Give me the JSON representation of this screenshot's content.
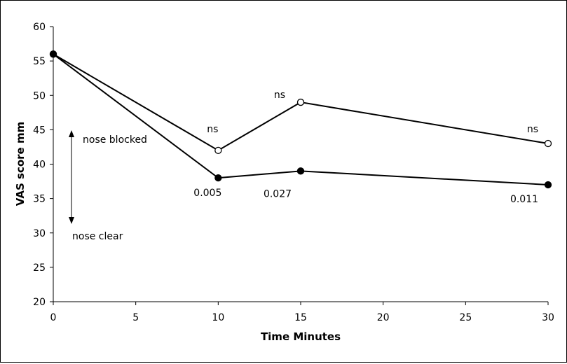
{
  "chart_data": {
    "type": "line",
    "xlabel": "Time Minutes",
    "ylabel": "VAS score mm",
    "xlim": [
      0,
      30
    ],
    "ylim": [
      20,
      60
    ],
    "x_ticks": [
      0,
      5,
      10,
      15,
      20,
      25,
      30
    ],
    "y_ticks": [
      20,
      25,
      30,
      35,
      40,
      45,
      50,
      55,
      60
    ],
    "grid": false,
    "legend": "none",
    "series": [
      {
        "marker": "open-circle",
        "x": [
          0,
          10,
          15,
          30
        ],
        "y": [
          56,
          42,
          49,
          43
        ],
        "point_labels": [
          "",
          "ns",
          "ns",
          "ns"
        ],
        "label_side": "above"
      },
      {
        "marker": "filled-circle",
        "x": [
          0,
          10,
          15,
          30
        ],
        "y": [
          56,
          38,
          39,
          37
        ],
        "point_labels": [
          "",
          "0.005",
          "0.027",
          "0.011"
        ],
        "label_side": "below"
      }
    ],
    "annotations": {
      "up_label": "nose blocked",
      "down_label": "nose clear"
    }
  }
}
